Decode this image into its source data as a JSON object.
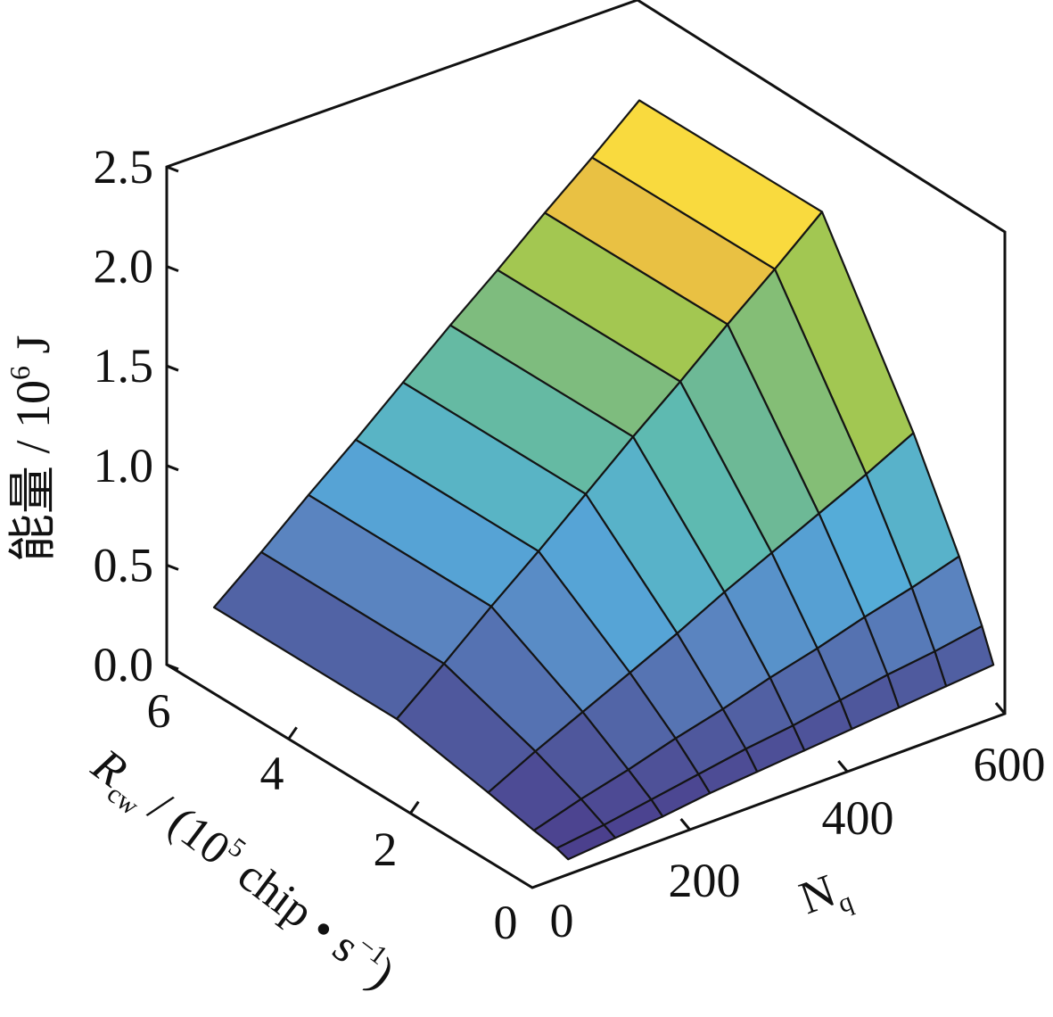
{
  "chart_data": {
    "type": "surface3d",
    "zlabel": "能量 / 10⁶ J",
    "zlabel_main": "能量 / 10",
    "zlabel_exp": "6",
    "zlabel_unit": " J",
    "xlabel_main": "R",
    "xlabel_sub": "cw",
    "xlabel_rest": " / (10",
    "xlabel_exp": "5",
    "xlabel_rest2": " chip • s",
    "xlabel_exp2": "−1",
    "xlabel_close": ")",
    "ylabel_main": "N",
    "ylabel_sub": "q",
    "zlim": [
      0,
      2.5
    ],
    "xlim": [
      0,
      6
    ],
    "ylim": [
      0,
      600
    ],
    "z_ticks": [
      "0.0",
      "0.5",
      "1.0",
      "1.5",
      "2.0",
      "2.5"
    ],
    "x_ticks": [
      "0",
      "2",
      "4",
      "6"
    ],
    "y_ticks": [
      "0",
      "200",
      "400",
      "600"
    ],
    "R_values": [
      0.1875,
      0.375,
      0.75,
      1.5,
      3,
      6
    ],
    "N_values": [
      60,
      120,
      180,
      240,
      300,
      360,
      420,
      480,
      540,
      600
    ],
    "energy": [
      [
        0.02,
        0.04,
        0.06,
        0.09,
        0.11,
        0.13,
        0.15,
        0.17,
        0.19,
        0.21
      ],
      [
        0.04,
        0.07,
        0.11,
        0.15,
        0.19,
        0.22,
        0.26,
        0.3,
        0.33,
        0.37
      ],
      [
        0.06,
        0.13,
        0.19,
        0.26,
        0.32,
        0.39,
        0.45,
        0.52,
        0.58,
        0.65
      ],
      [
        0.11,
        0.23,
        0.34,
        0.45,
        0.56,
        0.68,
        0.79,
        0.9,
        1.01,
        1.13
      ],
      [
        0.2,
        0.39,
        0.59,
        0.78,
        0.98,
        1.18,
        1.37,
        1.57,
        1.76,
        1.96
      ],
      [
        0.2,
        0.39,
        0.59,
        0.78,
        0.98,
        1.18,
        1.37,
        1.57,
        1.76,
        1.96
      ]
    ],
    "colormap": [
      "#4a3a8a",
      "#4f5a9e",
      "#5a84c0",
      "#55abdb",
      "#5bbab5",
      "#74b98a",
      "#a3c751",
      "#fbc040",
      "#f8ec3c"
    ],
    "grid": false
  }
}
